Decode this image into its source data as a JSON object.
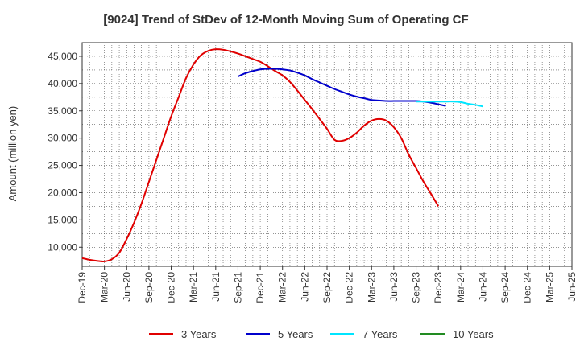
{
  "chart_data": {
    "type": "line",
    "title": "[9024]  Trend of StDev of 12-Month Moving Sum of Operating CF",
    "xlabel": "",
    "ylabel": "Amount (million yen)",
    "ylim": [
      6500,
      47500
    ],
    "yticks": [
      10000,
      15000,
      20000,
      25000,
      30000,
      35000,
      40000,
      45000
    ],
    "ytick_labels": [
      "10,000",
      "15,000",
      "20,000",
      "25,000",
      "30,000",
      "35,000",
      "40,000",
      "45,000"
    ],
    "x_range_index": [
      0,
      66
    ],
    "xticks": [
      {
        "label": "Dec-19",
        "index": 0
      },
      {
        "label": "Mar-20",
        "index": 3
      },
      {
        "label": "Jun-20",
        "index": 6
      },
      {
        "label": "Sep-20",
        "index": 9
      },
      {
        "label": "Dec-20",
        "index": 12
      },
      {
        "label": "Mar-21",
        "index": 15
      },
      {
        "label": "Jun-21",
        "index": 18
      },
      {
        "label": "Sep-21",
        "index": 21
      },
      {
        "label": "Dec-21",
        "index": 24
      },
      {
        "label": "Mar-22",
        "index": 27
      },
      {
        "label": "Jun-22",
        "index": 30
      },
      {
        "label": "Sep-22",
        "index": 33
      },
      {
        "label": "Dec-22",
        "index": 36
      },
      {
        "label": "Mar-23",
        "index": 39
      },
      {
        "label": "Jun-23",
        "index": 42
      },
      {
        "label": "Sep-23",
        "index": 45
      },
      {
        "label": "Dec-23",
        "index": 48
      },
      {
        "label": "Mar-24",
        "index": 51
      },
      {
        "label": "Jun-24",
        "index": 54
      },
      {
        "label": "Sep-24",
        "index": 57
      },
      {
        "label": "Dec-24",
        "index": 60
      },
      {
        "label": "Mar-25",
        "index": 63
      },
      {
        "label": "Jun-25",
        "index": 66
      }
    ],
    "grid": true,
    "legend_position": "bottom",
    "series": [
      {
        "name": "3 Years",
        "color": "#e00000",
        "start_index": 0,
        "values": [
          8000,
          7700,
          7500,
          7400,
          7800,
          9000,
          11500,
          14500,
          18000,
          22000,
          26000,
          30000,
          34000,
          37500,
          41000,
          43500,
          45200,
          46000,
          46300,
          46200,
          45900,
          45500,
          45000,
          44500,
          44000,
          43200,
          42300,
          41500,
          40300,
          38700,
          37000,
          35300,
          33500,
          31700,
          29700,
          29500,
          30000,
          31000,
          32300,
          33200,
          33500,
          33200,
          32000,
          30000,
          27000,
          24500,
          22000,
          19800,
          17500
        ]
      },
      {
        "name": "5 Years",
        "color": "#0000cc",
        "start_index": 21,
        "values": [
          41300,
          41900,
          42300,
          42600,
          42700,
          42700,
          42600,
          42400,
          42000,
          41500,
          40800,
          40200,
          39600,
          39000,
          38500,
          38000,
          37600,
          37300,
          37000,
          36900,
          36800,
          36800,
          36800,
          36800,
          36800,
          36700,
          36500,
          36200,
          35900
        ]
      },
      {
        "name": "7 Years",
        "color": "#00e5ff",
        "start_index": 45,
        "values": [
          36700,
          36700,
          36700,
          36700,
          36700,
          36700,
          36600,
          36300,
          36100,
          35800
        ]
      },
      {
        "name": "10 Years",
        "color": "#228b22",
        "start_index": 0,
        "values": []
      }
    ]
  }
}
